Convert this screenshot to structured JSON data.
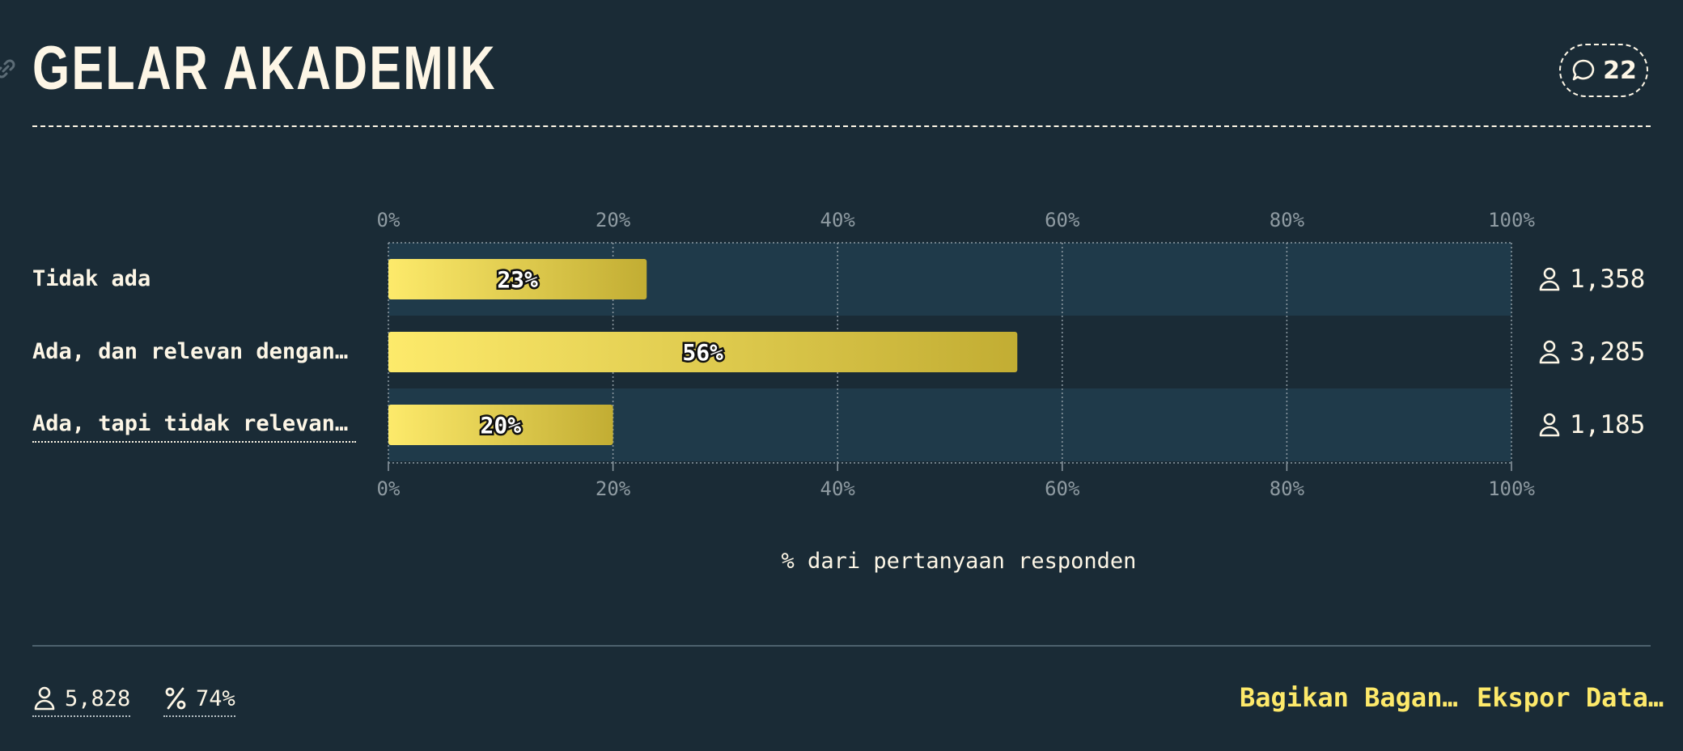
{
  "header": {
    "title": "GELAR AKADEMIK",
    "comment_count": "22"
  },
  "chart_data": {
    "type": "bar",
    "orientation": "horizontal",
    "title": "GELAR AKADEMIK",
    "categories": [
      "Tidak ada",
      "Ada, dan relevan dengan p…",
      "Ada, tapi tidak relevan d…"
    ],
    "values": [
      23,
      56,
      20
    ],
    "value_labels": [
      "23%",
      "56%",
      "20%"
    ],
    "counts": [
      "1,358",
      "3,285",
      "1,185"
    ],
    "xlim": [
      0,
      100
    ],
    "x_ticks": [
      "0%",
      "20%",
      "40%",
      "60%",
      "80%",
      "100%"
    ],
    "xlabel": "% dari pertanyaan responden",
    "ylabel": "",
    "grid": true,
    "colors": {
      "bar_start": "#fdea6b",
      "bar_end": "#c2ad33",
      "row_band": "#1f3a4a",
      "grid": "#8e9ba3",
      "tick_text": "#8f9ba2"
    }
  },
  "footer": {
    "total_respondents": "5,828",
    "response_rate": "74%",
    "share_label": "Bagikan Bagan…",
    "export_label": "Ekspor Data…"
  }
}
